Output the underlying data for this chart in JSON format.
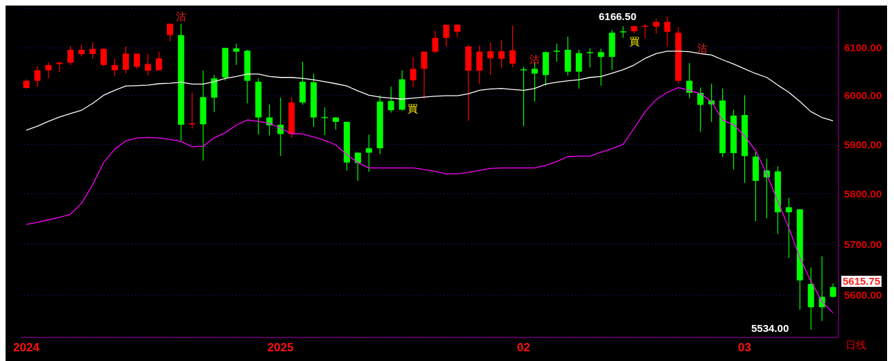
{
  "chart_data": {
    "type": "candlestick",
    "categories": [
      "2024",
      null,
      null,
      null,
      null,
      null,
      null,
      null,
      null,
      null,
      null,
      null,
      null,
      null,
      null,
      null,
      null,
      null,
      null,
      null,
      null,
      null,
      null,
      "2025",
      null,
      null,
      null,
      null,
      null,
      null,
      null,
      null,
      null,
      null,
      null,
      null,
      null,
      null,
      null,
      null,
      null,
      null,
      null,
      null,
      null,
      "02",
      null,
      null,
      null,
      null,
      null,
      null,
      null,
      null,
      null,
      null,
      null,
      null,
      null,
      null,
      null,
      null,
      null,
      null,
      null,
      "03",
      null,
      null,
      null,
      null,
      null,
      null,
      null,
      null
    ],
    "ohlc": [
      [
        6016,
        6034,
        6015,
        6031
      ],
      [
        6031,
        6062,
        6019,
        6053
      ],
      [
        6053,
        6070,
        6036,
        6064
      ],
      [
        6066,
        6071,
        6049,
        6069
      ],
      [
        6069,
        6104,
        6064,
        6096
      ],
      [
        6087,
        6107,
        6082,
        6096
      ],
      [
        6087,
        6112,
        6077,
        6098
      ],
      [
        6064,
        6099,
        6061,
        6098
      ],
      [
        6053,
        6077,
        6041,
        6064
      ],
      [
        6054,
        6103,
        6046,
        6088
      ],
      [
        6060,
        6088,
        6056,
        6088
      ],
      [
        6052,
        6087,
        6042,
        6066
      ],
      [
        6053,
        6092,
        6053,
        6078
      ],
      [
        6127,
        6152,
        6114,
        6151
      ],
      [
        6127,
        6151,
        5907,
        5940
      ],
      [
        5942,
        6006,
        5932,
        5943
      ],
      [
        5997,
        6052,
        5867,
        5941
      ],
      [
        6036,
        6043,
        5966,
        5996
      ],
      [
        6100,
        6100,
        6031,
        6038
      ],
      [
        6099,
        6109,
        6064,
        6092
      ],
      [
        6094,
        6096,
        5984,
        6031
      ],
      [
        6029,
        6036,
        5920,
        5955
      ],
      [
        5955,
        5982,
        5918,
        5939
      ],
      [
        5940,
        5996,
        5876,
        5921
      ],
      [
        5921,
        5997,
        5913,
        5986
      ],
      [
        6029,
        6071,
        5981,
        5986
      ],
      [
        6028,
        6046,
        5936,
        5955
      ],
      [
        5956,
        5976,
        5919,
        5955
      ],
      [
        5955,
        5956,
        5930,
        5946
      ],
      [
        5946,
        5946,
        5847,
        5863
      ],
      [
        5883,
        5883,
        5826,
        5862
      ],
      [
        5892,
        5920,
        5844,
        5883
      ],
      [
        5988,
        6001,
        5880,
        5892
      ],
      [
        5989,
        6019,
        5965,
        5970
      ],
      [
        6034,
        6053,
        5969,
        5971
      ],
      [
        6032,
        6080,
        6018,
        6056
      ],
      [
        6056,
        6093,
        5993,
        6092
      ],
      [
        6092,
        6137,
        6088,
        6121
      ],
      [
        6121,
        6149,
        6102,
        6149
      ],
      [
        6134,
        6150,
        6122,
        6149
      ],
      [
        6052,
        6106,
        5948,
        6103
      ],
      [
        6052,
        6105,
        6024,
        6092
      ],
      [
        6078,
        6112,
        6043,
        6093
      ],
      [
        6077,
        6117,
        6057,
        6093
      ],
      [
        6067,
        6147,
        6059,
        6095
      ],
      [
        6055,
        6061,
        5937,
        6054
      ],
      [
        6056,
        6070,
        5988,
        6046
      ],
      [
        6091,
        6093,
        6021,
        6043
      ],
      [
        6094,
        6109,
        6071,
        6093
      ],
      [
        6096,
        6124,
        6042,
        6050
      ],
      [
        6089,
        6096,
        6015,
        6050
      ],
      [
        6091,
        6099,
        6059,
        6090
      ],
      [
        6091,
        6098,
        6021,
        6081
      ],
      [
        6132,
        6138,
        6054,
        6081
      ],
      [
        6135,
        6146,
        6121,
        6134
      ],
      [
        6135,
        6147,
        6131,
        6146
      ],
      [
        6146,
        6150,
        6120,
        6147
      ],
      [
        6145,
        6162,
        6130,
        6155
      ],
      [
        6134,
        6166.5,
        6103,
        6155
      ],
      [
        6031,
        6144,
        6025,
        6132
      ],
      [
        6031,
        6068,
        5995,
        6006
      ],
      [
        6006,
        6017,
        5925,
        5981
      ],
      [
        5990,
        6025,
        5946,
        5982
      ],
      [
        5990,
        6015,
        5874,
        5882
      ],
      [
        5959,
        5971,
        5849,
        5882
      ],
      [
        5960,
        6001,
        5822,
        5876
      ],
      [
        5875,
        5884,
        5745,
        5826
      ],
      [
        5847,
        5871,
        5751,
        5833
      ],
      [
        5845,
        5855,
        5720,
        5763
      ],
      [
        5773,
        5792,
        5673,
        5763
      ],
      [
        5769,
        5769,
        5572,
        5629
      ],
      [
        5622,
        5654,
        5534,
        5577
      ],
      [
        5597,
        5676,
        5550,
        5577
      ],
      [
        5616,
        5623,
        5596,
        5597
      ]
    ],
    "colors": [
      "#ff0000",
      "#ff0000",
      "#ff0000",
      "#ff0000",
      "#ff0000",
      "#ff0000",
      "#ff0000",
      "#ff0000",
      "#ff0000",
      "#ff0000",
      "#ff0000",
      "#ff0000",
      "#ff0000",
      "#ff0000",
      "#00ff00",
      "#ff0000",
      "#00ff00",
      "#00ff00",
      "#00ff00",
      "#00ff00",
      "#00ff00",
      "#00ff00",
      "#00ff00",
      "#00ff00",
      "#ff0000",
      "#00ff00",
      "#00ff00",
      "#00ff00",
      "#00ff00",
      "#00ff00",
      "#00ff00",
      "#00ff00",
      "#00ff00",
      "#00ff00",
      "#00ff00",
      "#ff0000",
      "#ff0000",
      "#ff0000",
      "#ff0000",
      "#ff0000",
      "#ff0000",
      "#ff0000",
      "#ff0000",
      "#ff0000",
      "#ff0000",
      "#00ff00",
      "#00ff00",
      "#00ff00",
      "#00ff00",
      "#00ff00",
      "#00ff00",
      "#00ff00",
      "#00ff00",
      "#00ff00",
      "#00ff00",
      "#ff0000",
      "#ff0000",
      "#ff0000",
      "#ff0000",
      "#ff0000",
      "#00ff00",
      "#00ff00",
      "#00ff00",
      "#00ff00",
      "#00ff00",
      "#00ff00",
      "#00ff00",
      "#00ff00",
      "#00ff00",
      "#00ff00",
      "#00ff00",
      "#00ff00",
      "#00ff00",
      "#00ff00"
    ],
    "series": [
      {
        "type": "line",
        "color": "#ffffff",
        "values": [
          5929,
          5937,
          5947,
          5956,
          5963,
          5970,
          5984,
          6001,
          6011,
          6020,
          6021,
          6022,
          6025,
          6026,
          6028,
          6024,
          6024,
          6029,
          6036,
          6040,
          6045,
          6045,
          6040,
          6038,
          6038,
          6036,
          6033,
          6029,
          6025,
          6020,
          6010,
          6001,
          5997,
          5995,
          5993,
          5995,
          5997,
          5999,
          6000,
          6000,
          6004,
          6011,
          6014,
          6015,
          6013,
          6011,
          6015,
          6024,
          6028,
          6031,
          6033,
          6038,
          6040,
          6047,
          6054,
          6064,
          6078,
          6088,
          6093,
          6093,
          6092,
          6088,
          6085,
          6075,
          6066,
          6056,
          6046,
          6038,
          6022,
          6007,
          5988,
          5967,
          5955,
          5948
        ]
      },
      {
        "type": "line",
        "color": "#ff00ff",
        "values": [
          5739,
          5743,
          5748,
          5753,
          5759,
          5781,
          5818,
          5863,
          5890,
          5907,
          5913,
          5914,
          5913,
          5910,
          5906,
          5895,
          5896,
          5913,
          5924,
          5939,
          5950,
          5947,
          5943,
          5933,
          5922,
          5921,
          5915,
          5908,
          5899,
          5879,
          5863,
          5852,
          5852,
          5852,
          5852,
          5852,
          5849,
          5845,
          5840,
          5840,
          5843,
          5847,
          5851,
          5852,
          5852,
          5852,
          5852,
          5857,
          5865,
          5875,
          5876,
          5876,
          5884,
          5891,
          5900,
          5933,
          5967,
          5992,
          6007,
          6017,
          6011,
          6004,
          5988,
          5950,
          5940,
          5917,
          5887,
          5840,
          5785,
          5732,
          5673,
          5627,
          5588,
          5566
        ]
      }
    ],
    "log": true,
    "ylim": [
      5519,
      6184
    ],
    "yticks": [
      {
        "value": 5600,
        "label": "5600.00"
      },
      {
        "value": 5700,
        "label": "5700.00"
      },
      {
        "value": 5800,
        "label": "5800.00"
      },
      {
        "value": 5900,
        "label": "5900.00"
      },
      {
        "value": 6000,
        "label": "6000.00"
      },
      {
        "value": 6100,
        "label": "6100.00"
      }
    ],
    "grid": "y",
    "marker": "none",
    "line_style": "solid",
    "annotations": [
      "6166.50",
      "5534.00",
      "5615.75",
      "買",
      "買",
      "沽",
      "沽",
      "沽",
      "日线"
    ]
  }
}
